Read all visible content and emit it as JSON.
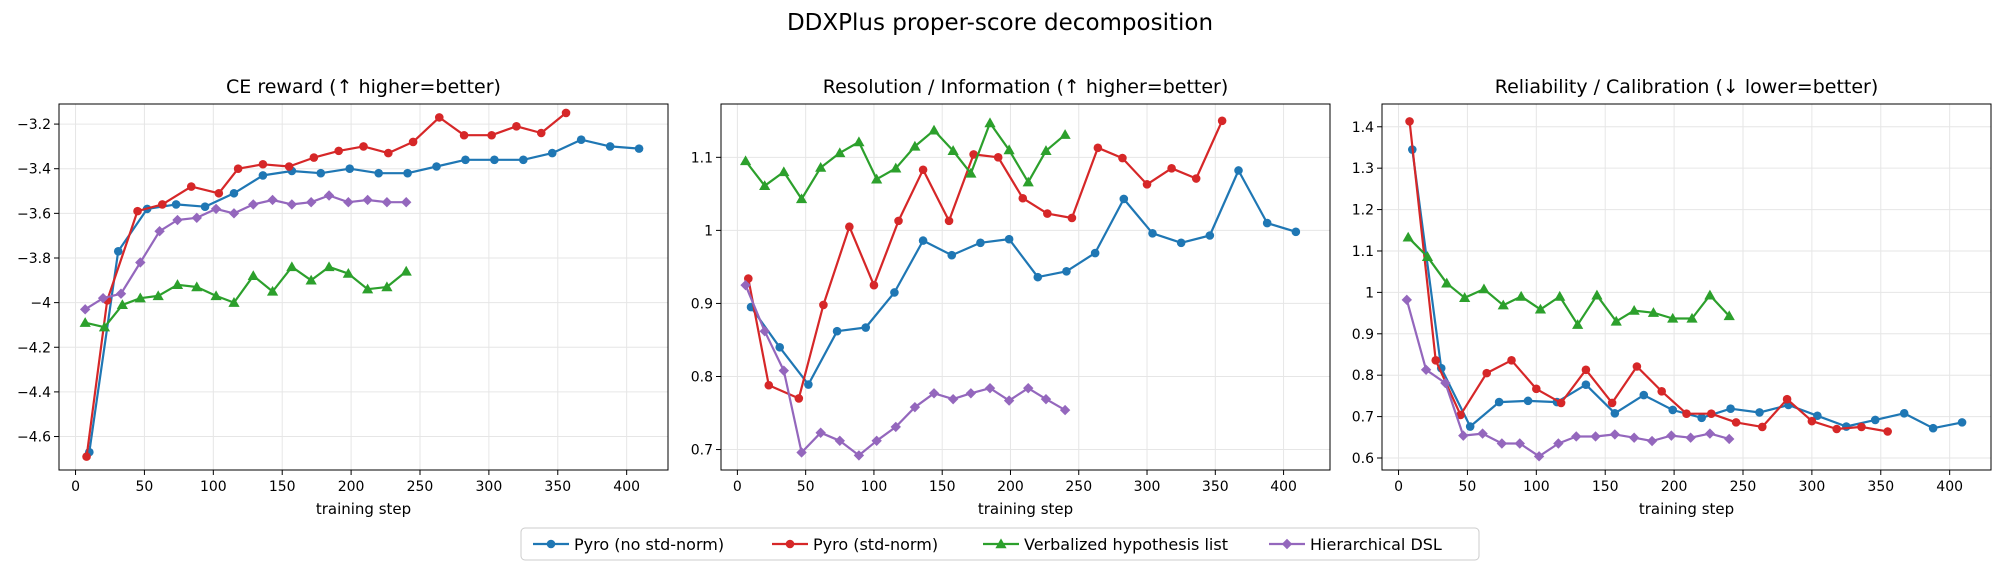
{
  "figure": {
    "suptitle": "DDXPlus proper-score decomposition"
  },
  "legend": {
    "position": "bottom-center",
    "entries": [
      {
        "name": "Pyro (no std-norm)",
        "color": "#1f77b4",
        "marker": "circle"
      },
      {
        "name": "Pyro (std-norm)",
        "color": "#d62728",
        "marker": "circle"
      },
      {
        "name": "Verbalized hypothesis list",
        "color": "#2ca02c",
        "marker": "triangle"
      },
      {
        "name": "Hierarchical DSL",
        "color": "#9467bd",
        "marker": "diamond"
      }
    ]
  },
  "chart_data": [
    {
      "type": "line",
      "title": "CE reward  (↑ higher=better)",
      "xlabel": "training step",
      "ylabel": "",
      "xlim": [
        -12,
        430
      ],
      "ylim": [
        -4.75,
        -3.11
      ],
      "xticks": [
        0,
        50,
        100,
        150,
        200,
        250,
        300,
        350,
        400
      ],
      "yticks": [
        -4.6,
        -4.4,
        -4.2,
        -4.0,
        -3.8,
        -3.6,
        -3.4,
        -3.2
      ],
      "grid": true,
      "series": [
        {
          "name": "Pyro (no std-norm)",
          "color": "#1f77b4",
          "marker": "circle",
          "points": [
            [
              10,
              -4.67
            ],
            [
              31,
              -3.77
            ],
            [
              52,
              -3.58
            ],
            [
              73,
              -3.56
            ],
            [
              94,
              -3.57
            ],
            [
              115,
              -3.51
            ],
            [
              136,
              -3.43
            ],
            [
              157,
              -3.41
            ],
            [
              178,
              -3.42
            ],
            [
              199,
              -3.4
            ],
            [
              220,
              -3.42
            ],
            [
              241,
              -3.42
            ],
            [
              262,
              -3.39
            ],
            [
              283,
              -3.36
            ],
            [
              304,
              -3.36
            ],
            [
              325,
              -3.36
            ],
            [
              346,
              -3.33
            ],
            [
              367,
              -3.27
            ],
            [
              388,
              -3.3
            ],
            [
              409,
              -3.31
            ]
          ]
        },
        {
          "name": "Pyro (std-norm)",
          "color": "#d62728",
          "marker": "circle",
          "points": [
            [
              8,
              -4.69
            ],
            [
              23,
              -3.99
            ],
            [
              45,
              -3.59
            ],
            [
              63,
              -3.56
            ],
            [
              84,
              -3.48
            ],
            [
              104,
              -3.51
            ],
            [
              118,
              -3.4
            ],
            [
              136,
              -3.38
            ],
            [
              155,
              -3.39
            ],
            [
              173,
              -3.35
            ],
            [
              191,
              -3.32
            ],
            [
              209,
              -3.3
            ],
            [
              227,
              -3.33
            ],
            [
              245,
              -3.28
            ],
            [
              264,
              -3.17
            ],
            [
              282,
              -3.25
            ],
            [
              302,
              -3.25
            ],
            [
              320,
              -3.21
            ],
            [
              338,
              -3.24
            ],
            [
              356,
              -3.15
            ]
          ]
        },
        {
          "name": "Verbalized hypothesis list",
          "color": "#2ca02c",
          "marker": "triangle",
          "points": [
            [
              7,
              -4.09
            ],
            [
              21,
              -4.11
            ],
            [
              34,
              -4.01
            ],
            [
              47,
              -3.98
            ],
            [
              60,
              -3.97
            ],
            [
              74,
              -3.92
            ],
            [
              88,
              -3.93
            ],
            [
              102,
              -3.97
            ],
            [
              115,
              -4.0
            ],
            [
              129,
              -3.88
            ],
            [
              143,
              -3.95
            ],
            [
              157,
              -3.84
            ],
            [
              171,
              -3.9
            ],
            [
              184,
              -3.84
            ],
            [
              198,
              -3.87
            ],
            [
              212,
              -3.94
            ],
            [
              226,
              -3.93
            ],
            [
              240,
              -3.86
            ]
          ]
        },
        {
          "name": "Hierarchical DSL",
          "color": "#9467bd",
          "marker": "diamond",
          "points": [
            [
              7,
              -4.03
            ],
            [
              20,
              -3.98
            ],
            [
              33,
              -3.96
            ],
            [
              47,
              -3.82
            ],
            [
              61,
              -3.68
            ],
            [
              74,
              -3.63
            ],
            [
              88,
              -3.62
            ],
            [
              102,
              -3.58
            ],
            [
              115,
              -3.6
            ],
            [
              129,
              -3.56
            ],
            [
              143,
              -3.54
            ],
            [
              157,
              -3.56
            ],
            [
              171,
              -3.55
            ],
            [
              184,
              -3.52
            ],
            [
              198,
              -3.55
            ],
            [
              212,
              -3.54
            ],
            [
              226,
              -3.55
            ],
            [
              240,
              -3.55
            ]
          ]
        }
      ]
    },
    {
      "type": "line",
      "title": "Resolution / Information  (↑ higher=better)",
      "xlabel": "training step",
      "ylabel": "",
      "xlim": [
        -12,
        434
      ],
      "ylim": [
        0.672,
        1.173
      ],
      "xticks": [
        0,
        50,
        100,
        150,
        200,
        250,
        300,
        350,
        400
      ],
      "yticks": [
        0.7,
        0.8,
        0.9,
        1.0,
        1.1
      ],
      "grid": true,
      "series": [
        {
          "name": "Pyro (no std-norm)",
          "color": "#1f77b4",
          "marker": "circle",
          "points": [
            [
              10,
              0.895
            ],
            [
              31,
              0.84
            ],
            [
              52,
              0.789
            ],
            [
              73,
              0.862
            ],
            [
              94,
              0.867
            ],
            [
              115,
              0.915
            ],
            [
              136,
              0.986
            ],
            [
              157,
              0.966
            ],
            [
              178,
              0.983
            ],
            [
              199,
              0.988
            ],
            [
              220,
              0.936
            ],
            [
              241,
              0.944
            ],
            [
              262,
              0.969
            ],
            [
              283,
              1.043
            ],
            [
              304,
              0.996
            ],
            [
              325,
              0.983
            ],
            [
              346,
              0.993
            ],
            [
              367,
              1.082
            ],
            [
              388,
              1.01
            ],
            [
              409,
              0.998
            ]
          ]
        },
        {
          "name": "Pyro (std-norm)",
          "color": "#d62728",
          "marker": "circle",
          "points": [
            [
              8,
              0.934
            ],
            [
              23,
              0.788
            ],
            [
              45,
              0.77
            ],
            [
              63,
              0.898
            ],
            [
              82,
              1.005
            ],
            [
              100,
              0.925
            ],
            [
              118,
              1.013
            ],
            [
              136,
              1.083
            ],
            [
              155,
              1.013
            ],
            [
              173,
              1.104
            ],
            [
              191,
              1.1
            ],
            [
              209,
              1.044
            ],
            [
              227,
              1.023
            ],
            [
              245,
              1.017
            ],
            [
              264,
              1.113
            ],
            [
              282,
              1.099
            ],
            [
              300,
              1.063
            ],
            [
              318,
              1.085
            ],
            [
              336,
              1.071
            ],
            [
              355,
              1.15
            ]
          ]
        },
        {
          "name": "Verbalized hypothesis list",
          "color": "#2ca02c",
          "marker": "triangle",
          "points": [
            [
              6,
              1.095
            ],
            [
              20,
              1.061
            ],
            [
              34,
              1.08
            ],
            [
              47,
              1.043
            ],
            [
              61,
              1.086
            ],
            [
              75,
              1.106
            ],
            [
              89,
              1.121
            ],
            [
              102,
              1.07
            ],
            [
              116,
              1.085
            ],
            [
              130,
              1.115
            ],
            [
              144,
              1.137
            ],
            [
              158,
              1.109
            ],
            [
              171,
              1.078
            ],
            [
              185,
              1.147
            ],
            [
              199,
              1.11
            ],
            [
              213,
              1.066
            ],
            [
              226,
              1.109
            ],
            [
              240,
              1.131
            ]
          ]
        },
        {
          "name": "Hierarchical DSL",
          "color": "#9467bd",
          "marker": "diamond",
          "points": [
            [
              6,
              0.925
            ],
            [
              20,
              0.862
            ],
            [
              34,
              0.808
            ],
            [
              47,
              0.696
            ],
            [
              61,
              0.723
            ],
            [
              75,
              0.712
            ],
            [
              89,
              0.692
            ],
            [
              102,
              0.712
            ],
            [
              116,
              0.731
            ],
            [
              130,
              0.758
            ],
            [
              144,
              0.777
            ],
            [
              158,
              0.769
            ],
            [
              171,
              0.777
            ],
            [
              185,
              0.784
            ],
            [
              199,
              0.767
            ],
            [
              213,
              0.784
            ],
            [
              226,
              0.769
            ],
            [
              240,
              0.754
            ]
          ]
        }
      ]
    },
    {
      "type": "line",
      "title": "Reliability / Calibration  (↓ lower=better)",
      "xlabel": "training step",
      "ylabel": "",
      "xlim": [
        -12,
        430
      ],
      "ylim": [
        0.571,
        1.455
      ],
      "xticks": [
        0,
        50,
        100,
        150,
        200,
        250,
        300,
        350,
        400
      ],
      "yticks": [
        0.6,
        0.7,
        0.8,
        0.9,
        1.0,
        1.1,
        1.2,
        1.3,
        1.4
      ],
      "grid": true,
      "series": [
        {
          "name": "Pyro (no std-norm)",
          "color": "#1f77b4",
          "marker": "circle",
          "points": [
            [
              10,
              1.345
            ],
            [
              31,
              0.817
            ],
            [
              52,
              0.676
            ],
            [
              73,
              0.735
            ],
            [
              94,
              0.738
            ],
            [
              115,
              0.735
            ],
            [
              136,
              0.777
            ],
            [
              157,
              0.708
            ],
            [
              178,
              0.752
            ],
            [
              199,
              0.716
            ],
            [
              220,
              0.697
            ],
            [
              241,
              0.719
            ],
            [
              262,
              0.71
            ],
            [
              283,
              0.728
            ],
            [
              304,
              0.702
            ],
            [
              325,
              0.676
            ],
            [
              346,
              0.692
            ],
            [
              367,
              0.708
            ],
            [
              388,
              0.672
            ],
            [
              409,
              0.686
            ]
          ]
        },
        {
          "name": "Pyro (std-norm)",
          "color": "#d62728",
          "marker": "circle",
          "points": [
            [
              8,
              1.413
            ],
            [
              27,
              0.836
            ],
            [
              45,
              0.704
            ],
            [
              64,
              0.805
            ],
            [
              82,
              0.836
            ],
            [
              100,
              0.767
            ],
            [
              118,
              0.733
            ],
            [
              136,
              0.813
            ],
            [
              155,
              0.733
            ],
            [
              173,
              0.821
            ],
            [
              191,
              0.761
            ],
            [
              209,
              0.707
            ],
            [
              227,
              0.707
            ],
            [
              245,
              0.686
            ],
            [
              264,
              0.675
            ],
            [
              282,
              0.742
            ],
            [
              300,
              0.689
            ],
            [
              318,
              0.67
            ],
            [
              336,
              0.675
            ],
            [
              355,
              0.664
            ]
          ]
        },
        {
          "name": "Verbalized hypothesis list",
          "color": "#2ca02c",
          "marker": "triangle",
          "points": [
            [
              7,
              1.133
            ],
            [
              21,
              1.086
            ],
            [
              35,
              1.022
            ],
            [
              48,
              0.987
            ],
            [
              62,
              1.008
            ],
            [
              76,
              0.969
            ],
            [
              89,
              0.99
            ],
            [
              103,
              0.959
            ],
            [
              117,
              0.99
            ],
            [
              130,
              0.922
            ],
            [
              144,
              0.993
            ],
            [
              158,
              0.93
            ],
            [
              171,
              0.956
            ],
            [
              185,
              0.951
            ],
            [
              199,
              0.937
            ],
            [
              213,
              0.937
            ],
            [
              226,
              0.993
            ],
            [
              240,
              0.943
            ]
          ]
        },
        {
          "name": "Hierarchical DSL",
          "color": "#9467bd",
          "marker": "diamond",
          "points": [
            [
              6,
              0.982
            ],
            [
              20,
              0.813
            ],
            [
              34,
              0.781
            ],
            [
              47,
              0.654
            ],
            [
              61,
              0.659
            ],
            [
              75,
              0.635
            ],
            [
              88,
              0.635
            ],
            [
              102,
              0.604
            ],
            [
              116,
              0.635
            ],
            [
              129,
              0.652
            ],
            [
              143,
              0.652
            ],
            [
              157,
              0.657
            ],
            [
              171,
              0.649
            ],
            [
              184,
              0.641
            ],
            [
              198,
              0.654
            ],
            [
              212,
              0.649
            ],
            [
              226,
              0.659
            ],
            [
              240,
              0.646
            ]
          ]
        }
      ]
    }
  ]
}
